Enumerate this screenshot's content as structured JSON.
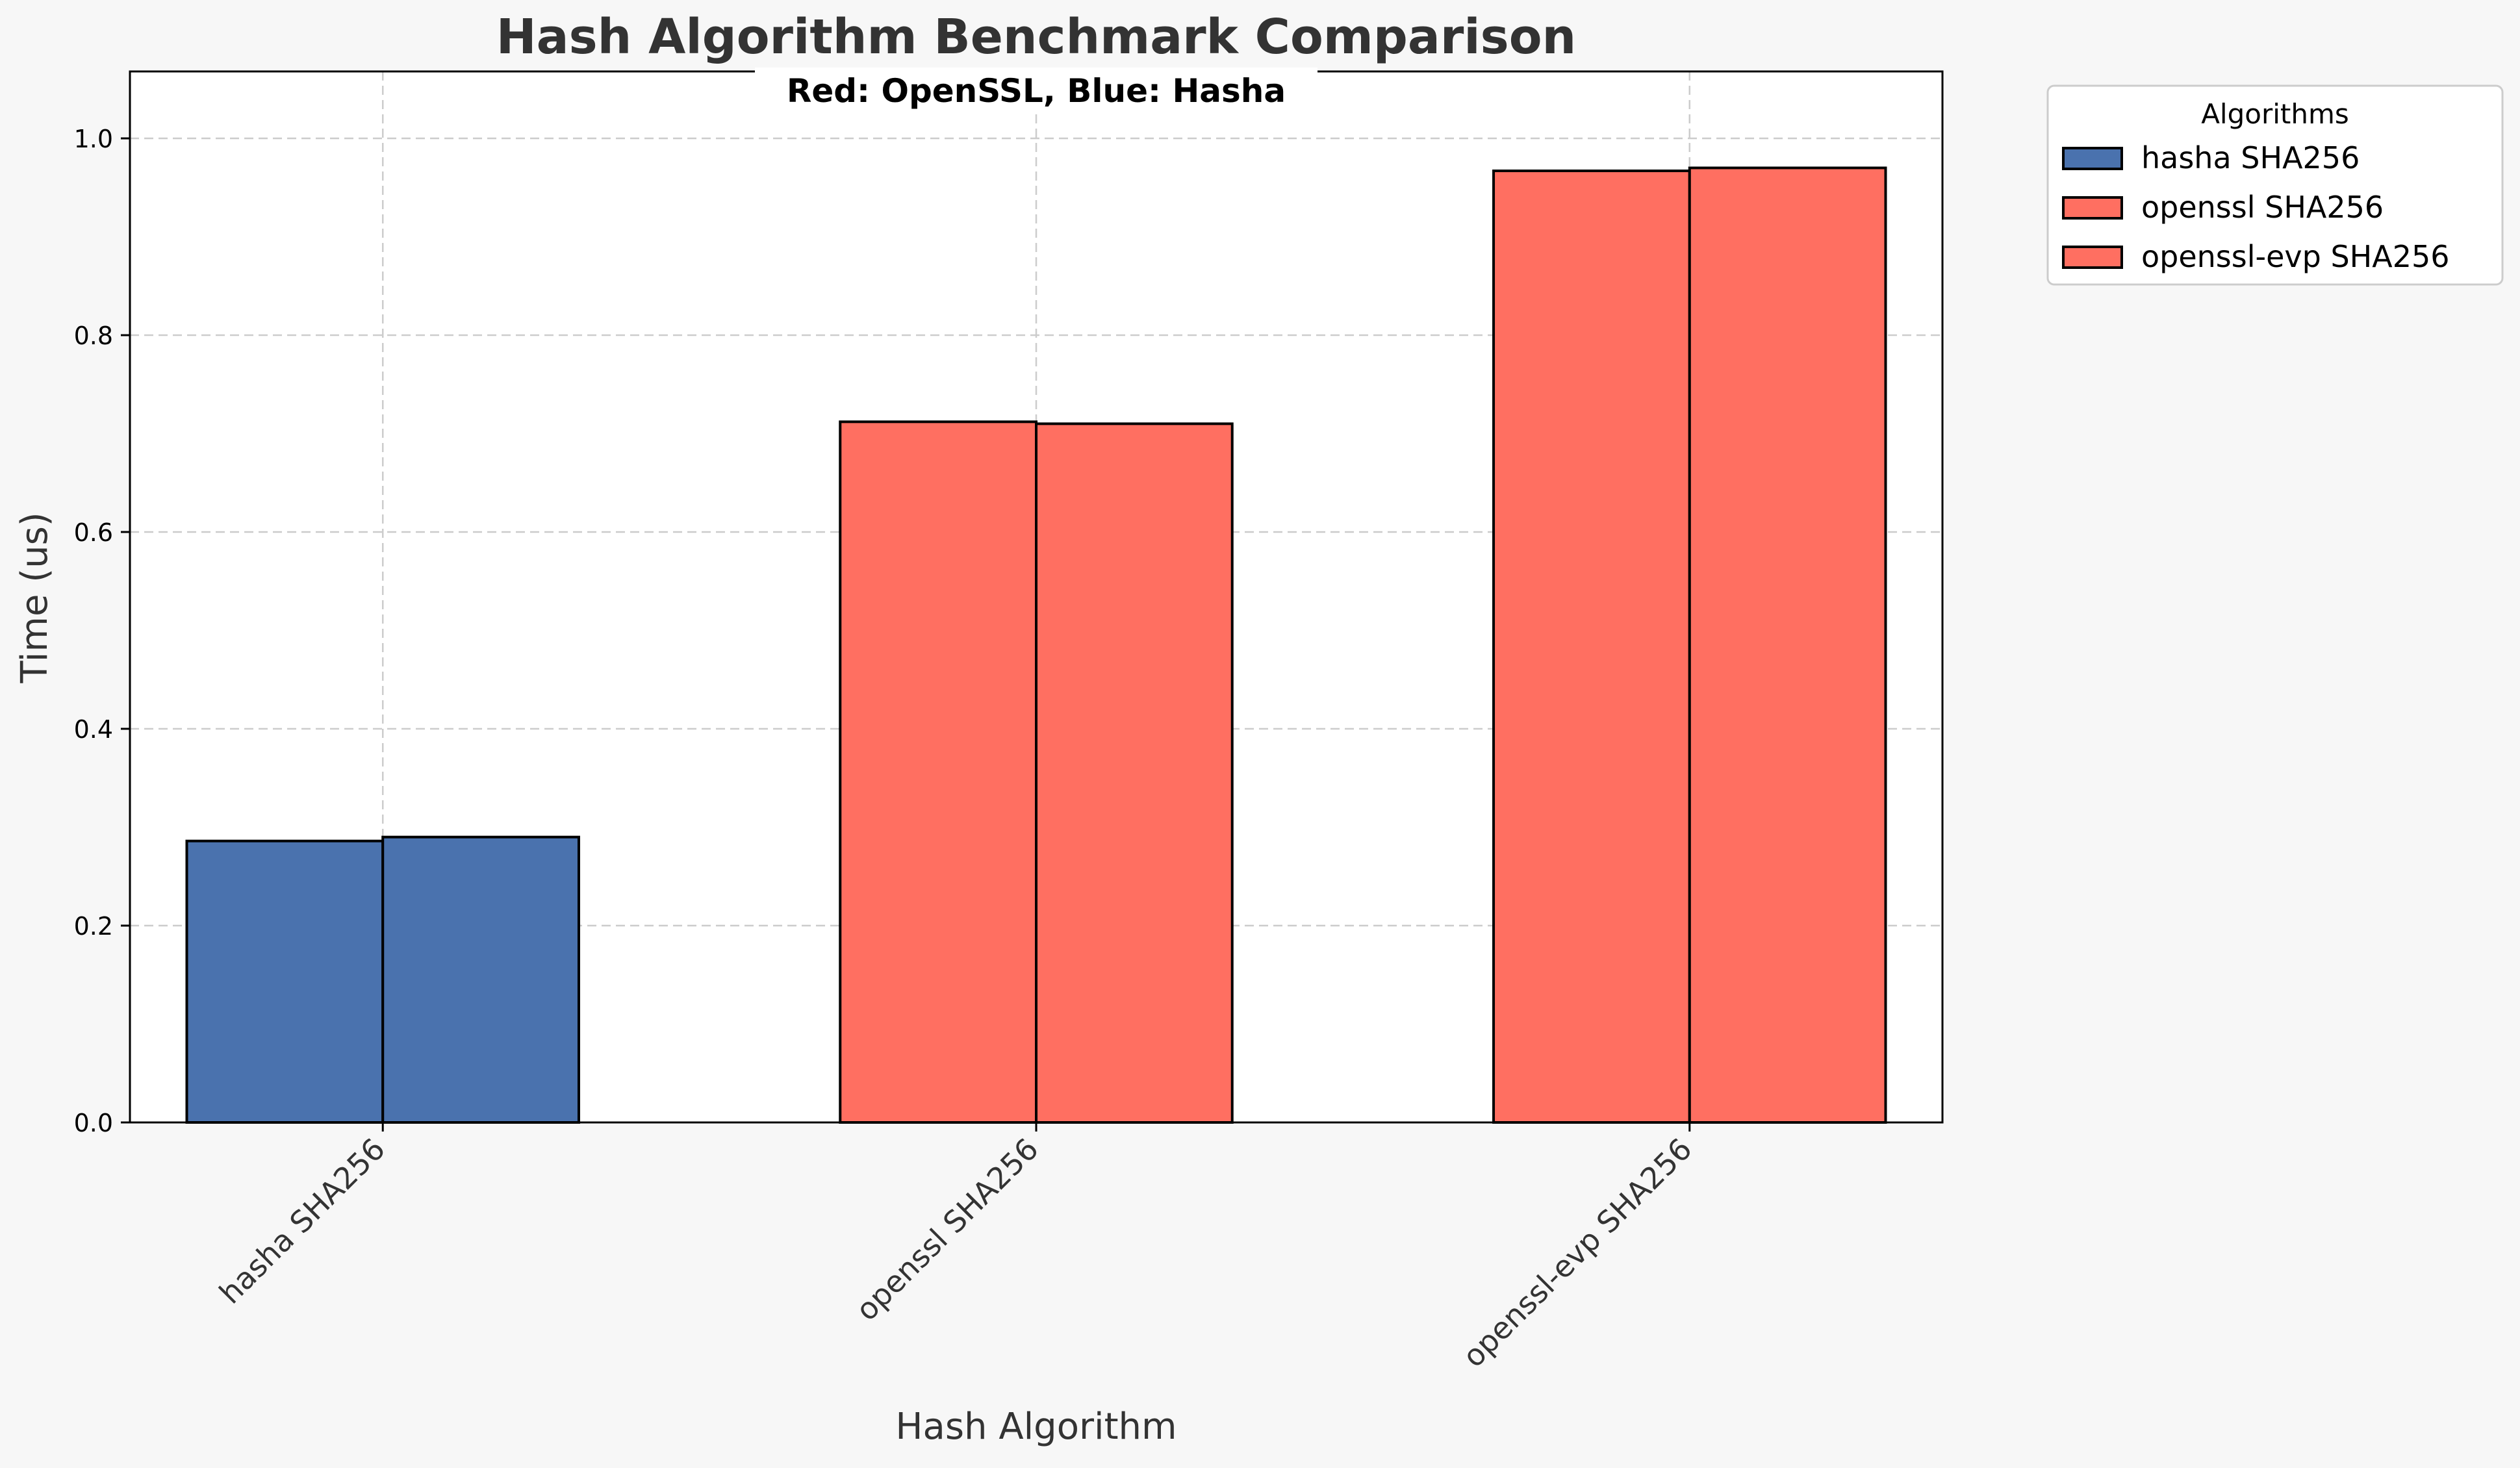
{
  "chart_data": {
    "type": "bar",
    "title": "Hash Algorithm Benchmark Comparison",
    "subtitle": "Red: OpenSSL, Blue: Hasha",
    "xlabel": "Hash Algorithm",
    "ylabel": "Time (us)",
    "ylim": [
      0,
      1.068
    ],
    "yticks": [
      "0.0",
      "0.2",
      "0.4",
      "0.6",
      "0.8",
      "1.0"
    ],
    "ytick_values": [
      0,
      0.2,
      0.4,
      0.6,
      0.8,
      1.0
    ],
    "categories": [
      "hasha SHA256",
      "openssl SHA256",
      "openssl-evp SHA256"
    ],
    "bars": [
      {
        "category": "hasha SHA256",
        "values": [
          0.286,
          0.29
        ],
        "color": "#4a72ae"
      },
      {
        "category": "openssl SHA256",
        "values": [
          0.712,
          0.71
        ],
        "color": "#ff6f61"
      },
      {
        "category": "openssl-evp SHA256",
        "values": [
          0.967,
          0.97
        ],
        "color": "#ff6f61"
      }
    ],
    "grid": true,
    "legend": {
      "title": "Algorithms",
      "placement": "outside-top-right",
      "entries": [
        {
          "label": "hasha SHA256",
          "color": "#4a72ae"
        },
        {
          "label": "openssl SHA256",
          "color": "#ff6f61"
        },
        {
          "label": "openssl-evp SHA256",
          "color": "#ff6f61"
        }
      ]
    }
  }
}
